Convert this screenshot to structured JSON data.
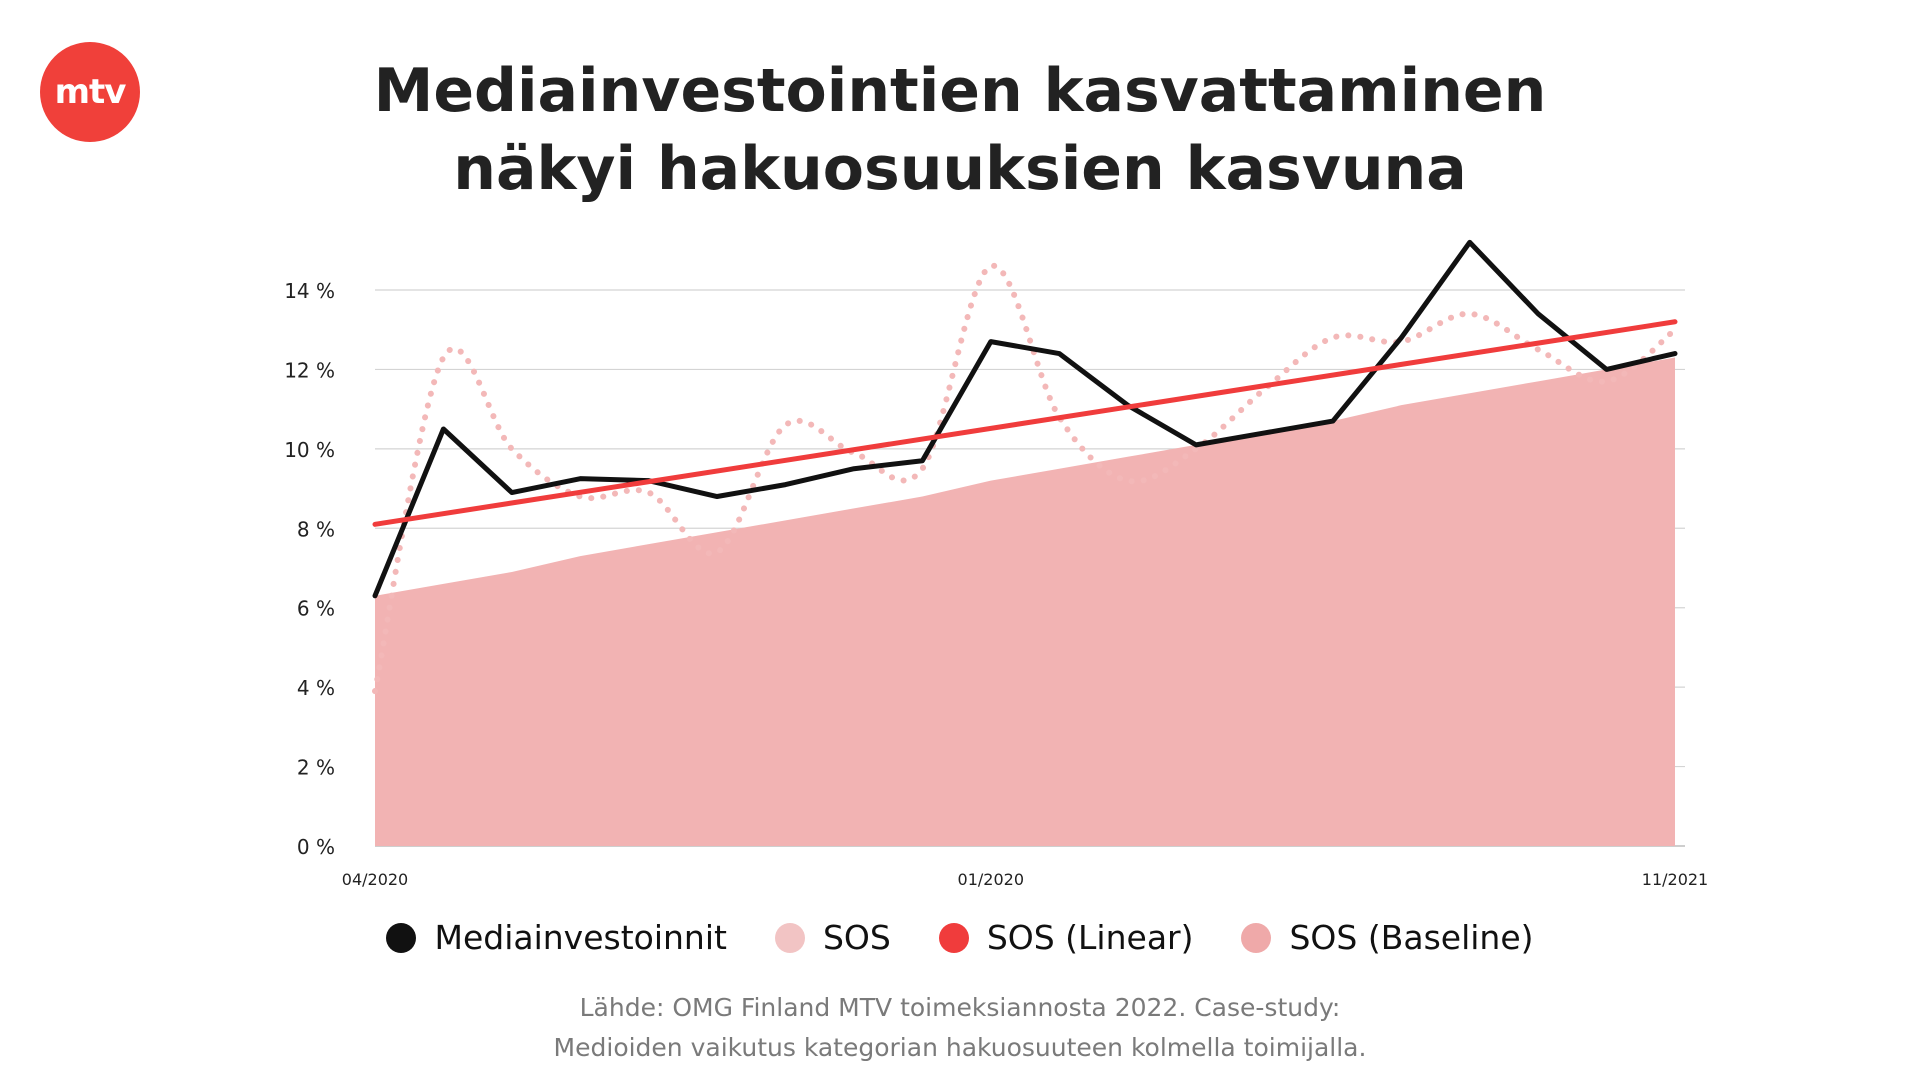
{
  "brand": {
    "logo_text": "mtv",
    "logo_color": "#f0403a"
  },
  "title_lines": [
    "Mediainvestointien kasvattaminen",
    "näkyi hakuosuuksien kasvuna"
  ],
  "source_lines": [
    "Lähde: OMG Finland MTV toimeksiannosta 2022. Case-study:",
    "Medioiden vaikutus kategorian hakuosuuteen kolmella toimijalla."
  ],
  "legend": [
    {
      "label": "Mediainvestoinnit",
      "color": "#111111",
      "icon": "black-dot-icon"
    },
    {
      "label": "SOS",
      "color": "#f2c4c4",
      "icon": "light-pink-dot-icon"
    },
    {
      "label": "SOS (Linear)",
      "color": "#f03c3c",
      "icon": "red-dot-icon"
    },
    {
      "label": "SOS (Baseline)",
      "color": "#efa9a9",
      "icon": "pink-dot-icon"
    }
  ],
  "chart_data": {
    "type": "line",
    "x_tick_labels": [
      "04/2020",
      "01/2020",
      "11/2021"
    ],
    "x_tick_index": [
      0,
      9,
      19
    ],
    "y_tick_labels": [
      "0 %",
      "2 %",
      "4 %",
      "6 %",
      "8 %",
      "10 %",
      "12 %",
      "14 %"
    ],
    "ylim": [
      0,
      14
    ],
    "grid": true,
    "legend_position": "bottom",
    "series": [
      {
        "name": "SOS (Baseline)",
        "kind": "area",
        "color": "#f2b3b3",
        "values": [
          6.3,
          6.6,
          6.9,
          7.3,
          7.6,
          7.9,
          8.2,
          8.5,
          8.8,
          9.2,
          9.5,
          9.8,
          10.1,
          10.4,
          10.7,
          11.1,
          11.4,
          11.7,
          12.0,
          12.3
        ]
      },
      {
        "name": "SOS",
        "kind": "dotted",
        "color": "#f3b8b8",
        "values": [
          3.9,
          12.3,
          10.0,
          8.8,
          8.9,
          7.4,
          10.6,
          9.9,
          9.5,
          14.6,
          10.8,
          9.2,
          10.0,
          11.5,
          12.8,
          12.7,
          13.4,
          12.5,
          11.7,
          13.0
        ]
      },
      {
        "name": "Mediainvestoinnit",
        "kind": "line",
        "color": "#111111",
        "values": [
          6.3,
          10.5,
          8.9,
          9.25,
          9.2,
          8.8,
          9.1,
          9.5,
          9.7,
          12.7,
          12.4,
          11.1,
          10.1,
          10.4,
          10.7,
          12.8,
          15.2,
          13.4,
          12.0,
          12.4
        ]
      },
      {
        "name": "SOS (Linear)",
        "kind": "line",
        "color": "#f03c3c",
        "values": [
          8.1,
          13.2
        ]
      }
    ]
  }
}
